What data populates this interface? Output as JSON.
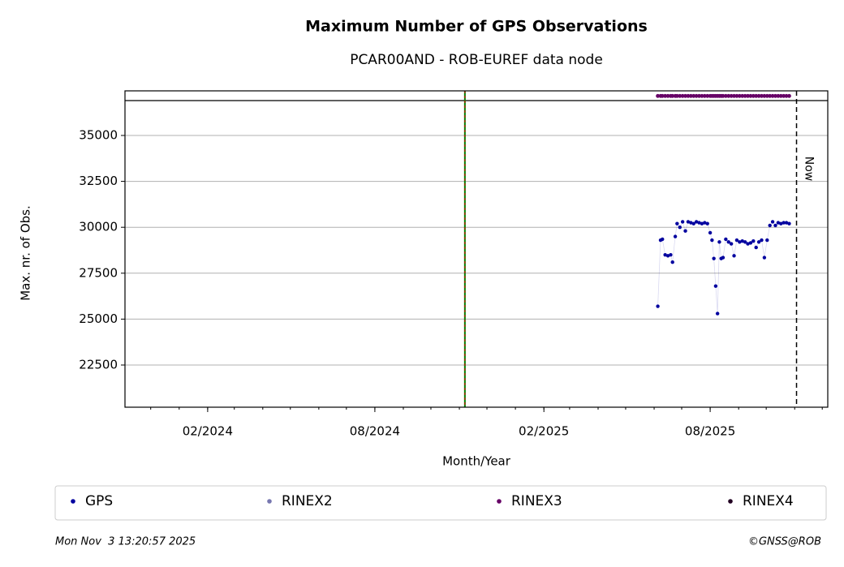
{
  "chart_data": {
    "type": "scatter",
    "title": "Maximum Number of GPS Observations",
    "subtitle": "PCAR00AND - ROB-EUREF data node",
    "xlabel": "Month/Year",
    "ylabel": "Max. nr. of Obs.",
    "xlim": [
      "2023-11-03",
      "2025-12-07"
    ],
    "xticks": [
      {
        "value": "2024-02-01",
        "label": "02/2024"
      },
      {
        "value": "2024-08-01",
        "label": "08/2024"
      },
      {
        "value": "2025-02-01",
        "label": "02/2025"
      },
      {
        "value": "2025-08-01",
        "label": "08/2025"
      }
    ],
    "ylim": [
      20203,
      37429
    ],
    "yticks": [
      22500,
      25000,
      27500,
      30000,
      32500,
      35000
    ],
    "grid": true,
    "band_line": 36899,
    "event_line": {
      "x": "2024-11-07"
    },
    "now_line": {
      "x": "2025-11-03",
      "label": "Now"
    },
    "x": [
      "2025-06-05",
      "2025-06-08",
      "2025-06-10",
      "2025-06-13",
      "2025-06-16",
      "2025-06-19",
      "2025-06-21",
      "2025-06-24",
      "2025-06-26",
      "2025-06-29",
      "2025-07-02",
      "2025-07-05",
      "2025-07-08",
      "2025-07-11",
      "2025-07-14",
      "2025-07-17",
      "2025-07-20",
      "2025-07-23",
      "2025-07-26",
      "2025-07-29",
      "2025-08-01",
      "2025-08-03",
      "2025-08-05",
      "2025-08-07",
      "2025-08-09",
      "2025-08-11",
      "2025-08-13",
      "2025-08-15",
      "2025-08-18",
      "2025-08-21",
      "2025-08-24",
      "2025-08-27",
      "2025-08-30",
      "2025-09-02",
      "2025-09-05",
      "2025-09-08",
      "2025-09-11",
      "2025-09-14",
      "2025-09-17",
      "2025-09-20",
      "2025-09-23",
      "2025-09-26",
      "2025-09-29",
      "2025-10-02",
      "2025-10-05",
      "2025-10-08",
      "2025-10-11",
      "2025-10-14",
      "2025-10-17",
      "2025-10-20",
      "2025-10-23",
      "2025-10-26"
    ],
    "series": [
      {
        "name": "GPS",
        "color": "#00009f",
        "values": [
          25700,
          29300,
          29350,
          28500,
          28450,
          28500,
          28100,
          29500,
          30200,
          30000,
          30300,
          29800,
          30300,
          30250,
          30200,
          30300,
          30250,
          30200,
          30250,
          30200,
          29700,
          29300,
          28300,
          26800,
          25300,
          29200,
          28300,
          28350,
          29350,
          29200,
          29100,
          28450,
          29300,
          29200,
          29250,
          29200,
          29100,
          29150,
          29250,
          28900,
          29200,
          29300,
          28350,
          29300,
          30100,
          30300,
          30100,
          30250,
          30200,
          30250,
          30250,
          30200
        ]
      },
      {
        "name": "RINEX2",
        "color": "#7777b0",
        "values": []
      },
      {
        "name": "RINEX3",
        "color": "#660066",
        "values": [
          37150,
          37150,
          37150,
          37150,
          37150,
          37150,
          37150,
          37150,
          37150,
          37150,
          37150,
          37150,
          37150,
          37150,
          37150,
          37150,
          37150,
          37150,
          37150,
          37150,
          37150,
          37150,
          37150,
          37150,
          37150,
          37150,
          37150,
          37150,
          37150,
          37150,
          37150,
          37150,
          37150,
          37150,
          37150,
          37150,
          37150,
          37150,
          37150,
          37150,
          37150,
          37150,
          37150,
          37150,
          37150,
          37150,
          37150,
          37150,
          37150,
          37150,
          37150,
          37150
        ]
      },
      {
        "name": "RINEX4",
        "color": "#220022",
        "values": []
      }
    ],
    "timestamp": "Mon Nov  3 13:20:57 2025",
    "credit": "©GNSS@ROB"
  }
}
